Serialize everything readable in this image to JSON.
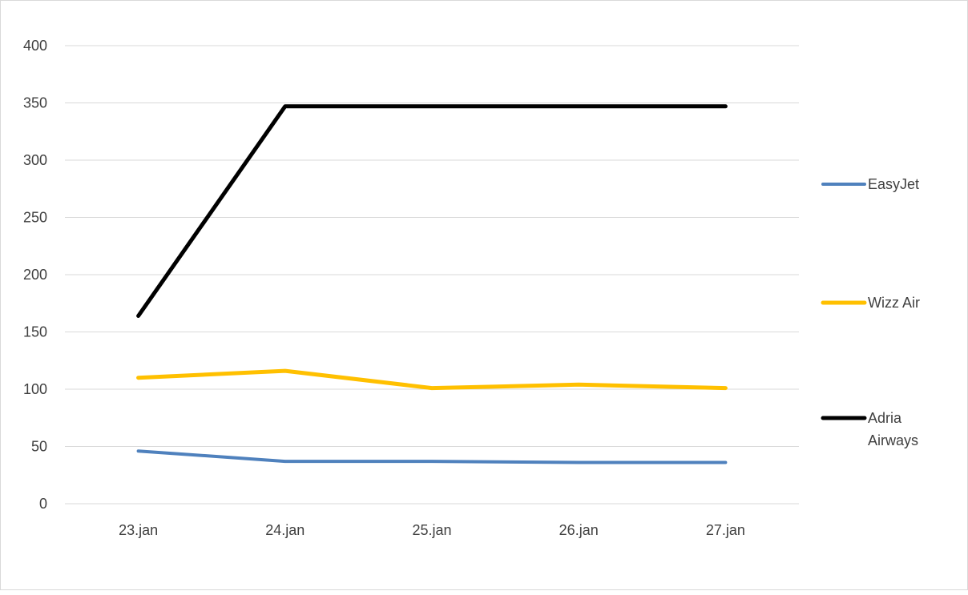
{
  "chart_data": {
    "type": "line",
    "title": "",
    "xlabel": "",
    "ylabel": "",
    "categories": [
      "23.jan",
      "24.jan",
      "25.jan",
      "26.jan",
      "27.jan"
    ],
    "ylim": [
      0,
      400
    ],
    "yticks": [
      0,
      50,
      100,
      150,
      200,
      250,
      300,
      350,
      400
    ],
    "grid": true,
    "legend_position": "right",
    "series": [
      {
        "name": "EasyJet",
        "color": "#4f81bd",
        "values": [
          46,
          37,
          37,
          36,
          36
        ],
        "legend_lines": [
          "EasyJet"
        ]
      },
      {
        "name": "Wizz Air",
        "color": "#ffc000",
        "values": [
          110,
          116,
          101,
          104,
          101
        ],
        "legend_lines": [
          "Wizz Air"
        ]
      },
      {
        "name": "Adria Airways",
        "color": "#000000",
        "values": [
          164,
          347,
          347,
          347,
          347
        ],
        "legend_lines": [
          "Adria",
          "Airways"
        ]
      }
    ]
  }
}
